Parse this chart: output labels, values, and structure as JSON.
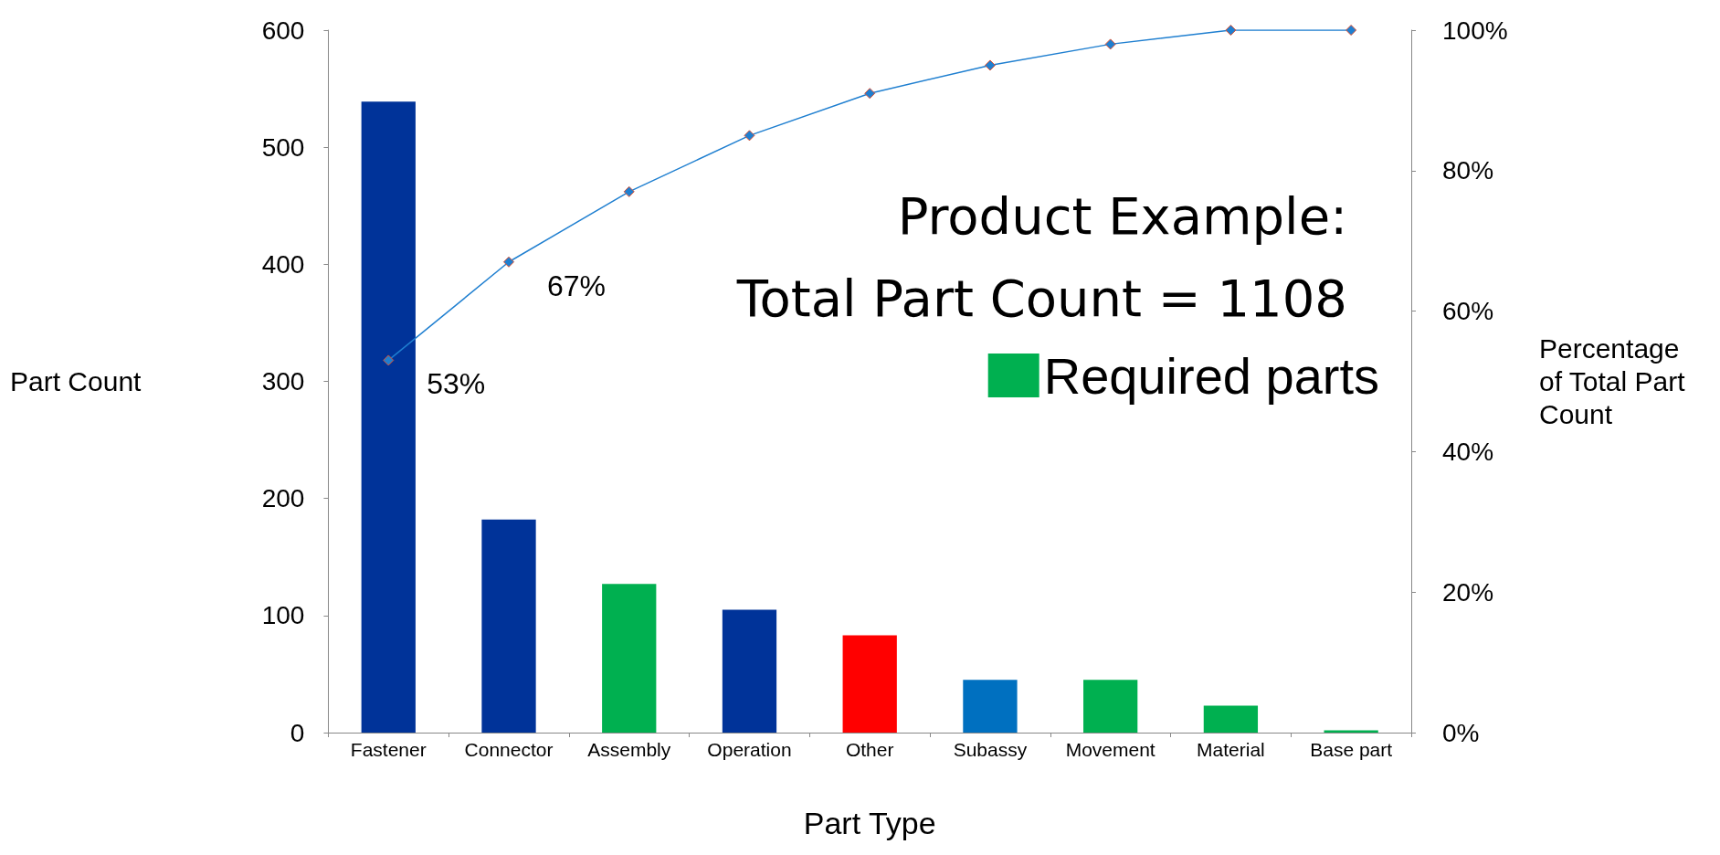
{
  "chart_data": {
    "type": "bar",
    "xlabel": "Part Type",
    "ylabel": "Part Count",
    "y2label": "Percentage\nof Total Part\nCount",
    "annotations": [
      "Product Example:",
      "Total Part Count = 1108"
    ],
    "categories": [
      "Fastener",
      "Connector",
      "Assembly",
      "Operation",
      "Other",
      "Subassy",
      "Movement",
      "Material",
      "Base part"
    ],
    "stacked": true,
    "series": [
      {
        "colors": [
          "#003399",
          "#003399",
          null,
          "#003399",
          "#ff0000",
          "#0070c0",
          null,
          null,
          null
        ],
        "values": [
          539,
          182,
          null,
          105,
          83,
          45,
          null,
          null,
          null
        ]
      },
      {
        "name": "Required parts",
        "color": "#00b050",
        "values": [
          null,
          null,
          127,
          null,
          null,
          null,
          45,
          23,
          2
        ]
      },
      {
        "type": "line",
        "axis": "y2",
        "color": "#1f7fd0",
        "marker": "diamond",
        "values": [
          53,
          67,
          77,
          85,
          91,
          95,
          98,
          100,
          100
        ],
        "value_labels": [
          "53%",
          "67%",
          null,
          null,
          null,
          null,
          null,
          null,
          null
        ]
      }
    ],
    "ylim": [
      0,
      600
    ],
    "yticks": [
      0,
      100,
      200,
      300,
      400,
      500,
      600
    ],
    "y2lim": [
      0,
      100
    ],
    "y2ticks": [
      {
        "value": 0,
        "label": "0%"
      },
      {
        "value": 20,
        "label": "20%"
      },
      {
        "value": 40,
        "label": "40%"
      },
      {
        "value": 60,
        "label": "60%"
      },
      {
        "value": 80,
        "label": "80%"
      },
      {
        "value": 100,
        "label": "100%"
      }
    ],
    "grid": false,
    "legend": "right"
  }
}
